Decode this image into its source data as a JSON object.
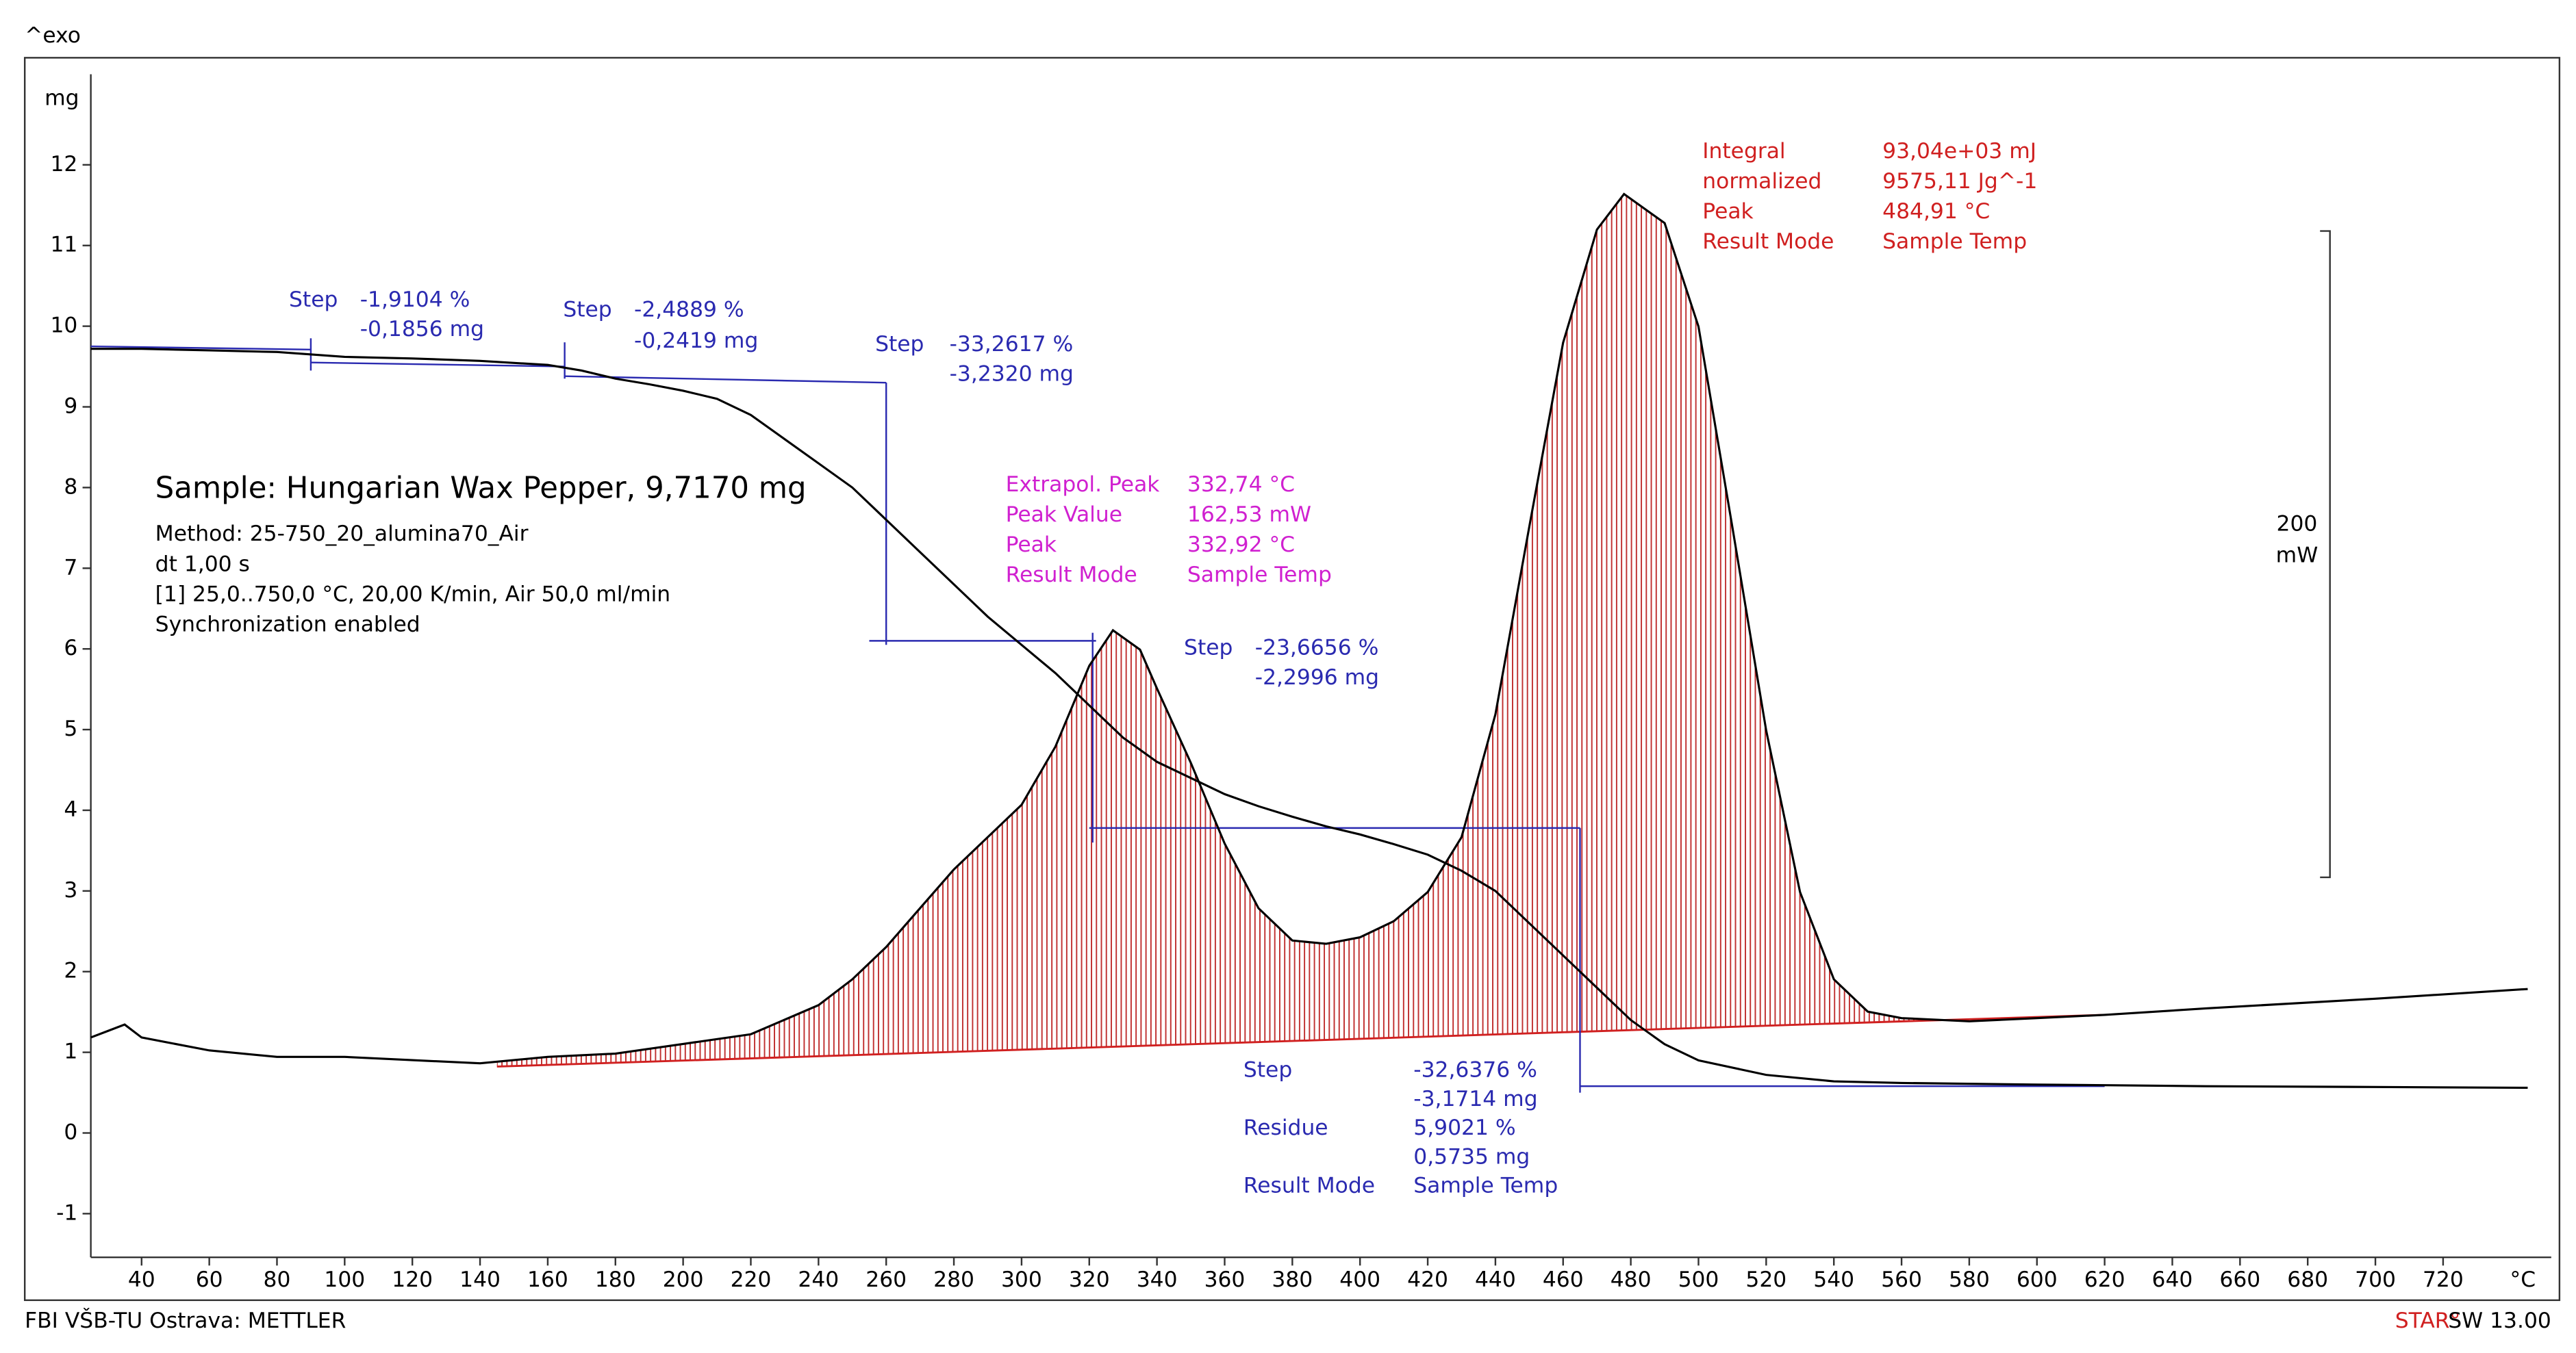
{
  "chart_data": {
    "type": "line",
    "exo_label": "^exo",
    "y_label": "mg",
    "x_unit": "°C",
    "xlim": [
      25,
      750
    ],
    "ylim": [
      -1.5,
      13
    ],
    "y2lim": [
      -37,
      325
    ],
    "xticks": [
      40,
      60,
      80,
      100,
      120,
      140,
      160,
      180,
      200,
      220,
      240,
      260,
      280,
      300,
      320,
      340,
      360,
      380,
      400,
      420,
      440,
      460,
      480,
      500,
      520,
      540,
      560,
      580,
      600,
      620,
      640,
      660,
      680,
      700,
      720
    ],
    "yticks": [
      -1,
      0,
      1,
      2,
      3,
      4,
      5,
      6,
      7,
      8,
      9,
      10,
      11,
      12
    ],
    "series": [
      {
        "color": "#000000",
        "x": [
          25,
          40,
          60,
          80,
          100,
          120,
          140,
          160,
          170,
          180,
          190,
          200,
          210,
          220,
          230,
          240,
          250,
          260,
          270,
          280,
          290,
          300,
          310,
          320,
          330,
          340,
          350,
          360,
          370,
          380,
          390,
          400,
          410,
          420,
          430,
          440,
          450,
          460,
          470,
          480,
          490,
          500,
          520,
          540,
          560,
          600,
          650,
          700,
          745
        ],
        "values": [
          9.72,
          9.72,
          9.7,
          9.68,
          9.62,
          9.6,
          9.57,
          9.52,
          9.45,
          9.35,
          9.28,
          9.2,
          9.1,
          8.9,
          8.6,
          8.3,
          8.0,
          7.6,
          7.2,
          6.8,
          6.4,
          6.05,
          5.7,
          5.3,
          4.9,
          4.6,
          4.4,
          4.2,
          4.05,
          3.92,
          3.8,
          3.7,
          3.58,
          3.45,
          3.25,
          3.0,
          2.6,
          2.2,
          1.8,
          1.4,
          1.1,
          0.9,
          0.72,
          0.64,
          0.62,
          0.6,
          0.58,
          0.57,
          0.56
        ]
      },
      {
        "color": "#000000",
        "axis": "y2",
        "x": [
          25,
          30,
          35,
          40,
          60,
          80,
          100,
          120,
          140,
          160,
          180,
          200,
          220,
          240,
          250,
          260,
          270,
          280,
          290,
          300,
          310,
          320,
          327,
          335,
          340,
          350,
          360,
          370,
          380,
          390,
          400,
          410,
          420,
          430,
          440,
          450,
          460,
          470,
          478,
          490,
          500,
          510,
          520,
          530,
          540,
          550,
          560,
          580,
          600,
          620,
          650,
          700,
          745
        ],
        "values": [
          30,
          32,
          34,
          30,
          26,
          24,
          24,
          23,
          22,
          24,
          25,
          28,
          31,
          40,
          48,
          58,
          70,
          82,
          92,
          102,
          120,
          145,
          156,
          150,
          138,
          115,
          90,
          70,
          60,
          59,
          61,
          66,
          75,
          92,
          130,
          188,
          245,
          280,
          291,
          282,
          250,
          188,
          125,
          75,
          48,
          38,
          36,
          35,
          36,
          37,
          39,
          42,
          45
        ]
      }
    ],
    "integration_baseline": {
      "color": "#d02020",
      "x": [
        145,
        620
      ],
      "values": [
        21,
        37
      ]
    },
    "construction_lines": [
      {
        "x": [
          25,
          90
        ],
        "values": [
          9.75,
          9.71
        ]
      },
      {
        "x": [
          90,
          165
        ],
        "values": [
          9.55,
          9.5
        ]
      },
      {
        "x": [
          90,
          90
        ],
        "values": [
          9.45,
          9.85
        ]
      },
      {
        "x": [
          165,
          165
        ],
        "values": [
          9.35,
          9.8
        ]
      },
      {
        "x": [
          165,
          260
        ],
        "values": [
          9.38,
          9.3
        ]
      },
      {
        "x": [
          260,
          260
        ],
        "values": [
          9.3,
          6.05
        ]
      },
      {
        "x": [
          255,
          322
        ],
        "values": [
          6.1,
          6.1
        ]
      },
      {
        "x": [
          321,
          321
        ],
        "values": [
          6.2,
          3.6
        ]
      },
      {
        "x": [
          320,
          465
        ],
        "values": [
          3.78,
          3.78
        ]
      },
      {
        "x": [
          465,
          465
        ],
        "values": [
          3.78,
          0.5
        ]
      },
      {
        "x": [
          465,
          620
        ],
        "values": [
          0.58,
          0.58
        ]
      }
    ],
    "construction_color": "#2a2ab0",
    "scale_bar": {
      "value": 200,
      "unit": "mW"
    },
    "sample": {
      "title": "Sample: Hungarian Wax Pepper, 9,7170 mg",
      "lines": [
        "Method: 25-750_20_alumina70_Air",
        "dt 1,00 s",
        "[1] 25,0..750,0 °C, 20,00 K/min, Air 50,0 ml/min",
        "Synchronization enabled"
      ]
    },
    "annotations": [
      {
        "color": "#2a2ab0",
        "rows": [
          [
            "Step",
            "-1,9104 %"
          ],
          [
            "-0,1856 mg"
          ]
        ]
      },
      {
        "color": "#2a2ab0",
        "rows": [
          [
            "Step",
            "-2,4889 %"
          ],
          [
            "-0,2419 mg"
          ]
        ]
      },
      {
        "color": "#2a2ab0",
        "rows": [
          [
            "Step",
            "-33,2617 %"
          ],
          [
            "-3,2320 mg"
          ]
        ]
      },
      {
        "color": "#2a2ab0",
        "rows": [
          [
            "Step",
            "-23,6656 %"
          ],
          [
            "-2,2996 mg"
          ]
        ]
      },
      {
        "color": "#2a2ab0",
        "rows": [
          [
            "Step",
            "-32,6376 %"
          ],
          [
            "-3,1714 mg"
          ],
          [
            "Residue",
            "5,9021 %"
          ],
          [
            "0,5735 mg"
          ],
          [
            "Result Mode",
            "Sample Temp"
          ]
        ]
      },
      {
        "color": "#d020d0",
        "rows": [
          [
            "Extrapol. Peak",
            "332,74 °C"
          ],
          [
            "Peak Value",
            "162,53 mW"
          ],
          [
            "Peak",
            "332,92 °C"
          ],
          [
            "Result Mode",
            "Sample Temp"
          ]
        ]
      },
      {
        "color": "#d02020",
        "rows": [
          [
            "Integral",
            "93,04e+03 mJ"
          ],
          [
            "normalized",
            "9575,11 Jg^-1"
          ],
          [
            "Peak",
            "484,91 °C"
          ],
          [
            "Result Mode",
            "Sample Temp"
          ]
        ]
      }
    ],
    "footer_left": "FBI VŠB-TU Ostrava: METTLER",
    "footer_brand": "STAR°",
    "footer_version": "SW 13.00"
  }
}
